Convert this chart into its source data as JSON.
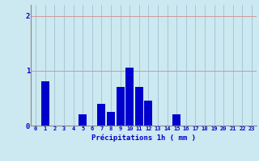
{
  "hours": [
    0,
    1,
    2,
    3,
    4,
    5,
    6,
    7,
    8,
    9,
    10,
    11,
    12,
    13,
    14,
    15,
    16,
    17,
    18,
    19,
    20,
    21,
    22,
    23
  ],
  "values": [
    0,
    0.8,
    0,
    0,
    0,
    0.2,
    0,
    0.4,
    0.25,
    0.7,
    1.05,
    0.7,
    0.45,
    0,
    0,
    0.2,
    0,
    0,
    0,
    0,
    0,
    0,
    0,
    0
  ],
  "bar_color": "#0000cc",
  "bg_color": "#cce8f0",
  "grid_color_h": "#cc9999",
  "grid_color_v": "#99bbcc",
  "xlabel": "Précipitations 1h ( mm )",
  "xlabel_color": "#0000cc",
  "tick_color": "#0000cc",
  "yticks": [
    0,
    1,
    2
  ],
  "ylim": [
    0,
    2.2
  ],
  "xlim": [
    -0.5,
    23.5
  ],
  "bar_width": 0.85
}
